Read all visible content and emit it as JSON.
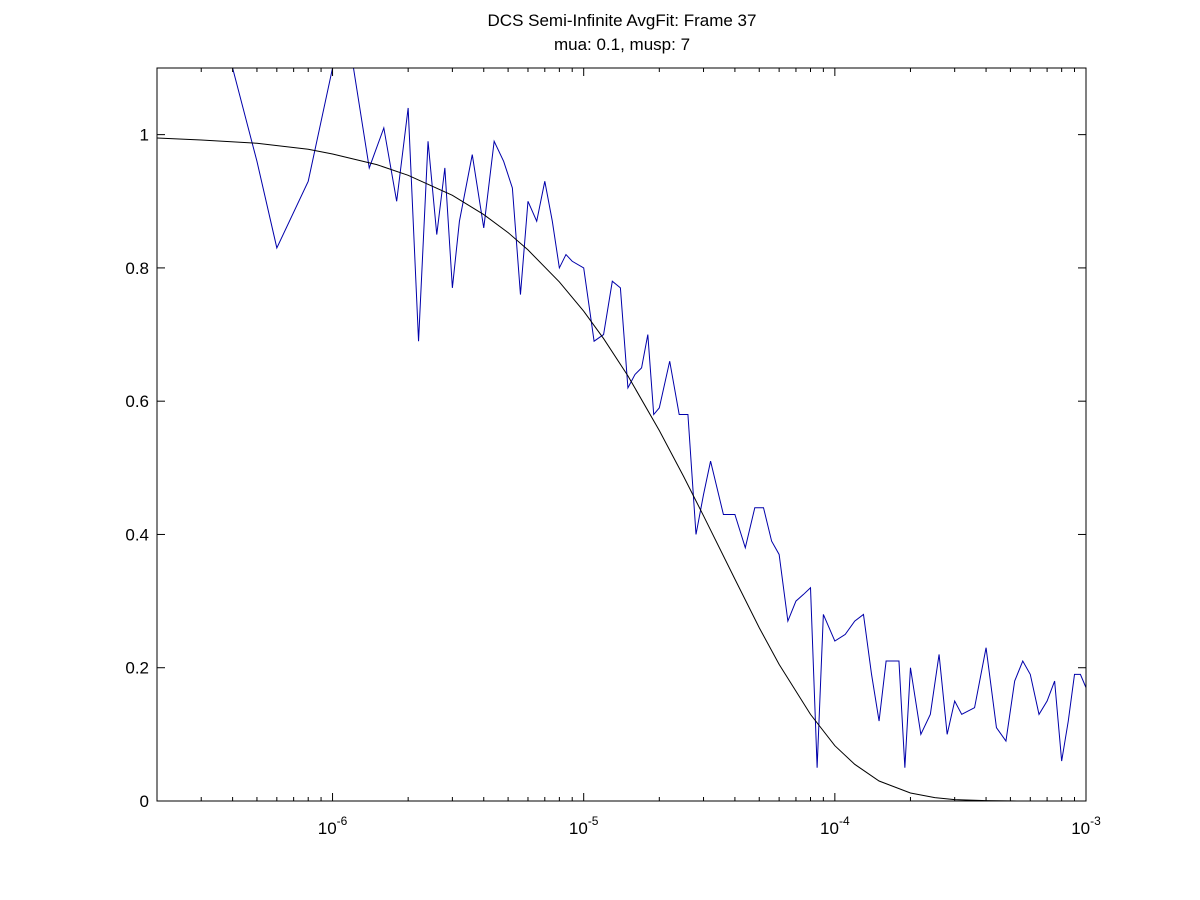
{
  "chart_data": {
    "type": "line",
    "title": "DCS Semi-Infinite AvgFit: Frame 37",
    "subtitle": "mua: 0.1, musp: 7",
    "xlabel": "",
    "ylabel": "",
    "xscale": "log",
    "xlim": [
      2e-07,
      0.001
    ],
    "ylim": [
      0,
      1.1
    ],
    "grid": false,
    "legend": "none",
    "x_ticks": [
      {
        "value": 1e-06,
        "base": "10",
        "exponent": "-6"
      },
      {
        "value": 1e-05,
        "base": "10",
        "exponent": "-5"
      },
      {
        "value": 0.0001,
        "base": "10",
        "exponent": "-4"
      },
      {
        "value": 0.001,
        "base": "10",
        "exponent": "-3"
      }
    ],
    "y_ticks": [
      {
        "value": 0,
        "label": "0"
      },
      {
        "value": 0.2,
        "label": "0.2"
      },
      {
        "value": 0.4,
        "label": "0.4"
      },
      {
        "value": 0.6,
        "label": "0.6"
      },
      {
        "value": 0.8,
        "label": "0.8"
      },
      {
        "value": 1.0,
        "label": "1"
      }
    ],
    "series": [
      {
        "color": "#0000aa",
        "x": [
          4e-07,
          5e-07,
          6e-07,
          8e-07,
          1e-06,
          1.2e-06,
          1.4e-06,
          1.6e-06,
          1.8e-06,
          2e-06,
          2.2e-06,
          2.4e-06,
          2.6e-06,
          2.8e-06,
          3e-06,
          3.2e-06,
          3.6e-06,
          4e-06,
          4.4e-06,
          4.8e-06,
          5.2e-06,
          5.6e-06,
          6e-06,
          6.5e-06,
          7e-06,
          7.5e-06,
          8e-06,
          8.5e-06,
          9e-06,
          1e-05,
          1.1e-05,
          1.2e-05,
          1.3e-05,
          1.4e-05,
          1.5e-05,
          1.6e-05,
          1.7e-05,
          1.8e-05,
          1.9e-05,
          2e-05,
          2.2e-05,
          2.4e-05,
          2.6e-05,
          2.8e-05,
          3e-05,
          3.2e-05,
          3.6e-05,
          4e-05,
          4.4e-05,
          4.8e-05,
          5.2e-05,
          5.6e-05,
          6e-05,
          6.5e-05,
          7e-05,
          7.5e-05,
          8e-05,
          8.5e-05,
          9e-05,
          0.0001,
          0.00011,
          0.00012,
          0.00013,
          0.00014,
          0.00015,
          0.00016,
          0.00017,
          0.00018,
          0.00019,
          0.0002,
          0.00022,
          0.00024,
          0.00026,
          0.00028,
          0.0003,
          0.00032,
          0.00036,
          0.0004,
          0.00044,
          0.00048,
          0.00052,
          0.00056,
          0.0006,
          0.00065,
          0.0007,
          0.00075,
          0.0008,
          0.00085,
          0.0009,
          0.00095,
          0.001
        ],
        "y": [
          1.1,
          0.96,
          0.83,
          0.93,
          1.1,
          1.11,
          0.95,
          1.01,
          0.9,
          1.04,
          0.69,
          0.99,
          0.85,
          0.95,
          0.77,
          0.87,
          0.97,
          0.86,
          0.99,
          0.96,
          0.92,
          0.76,
          0.9,
          0.87,
          0.93,
          0.87,
          0.8,
          0.82,
          0.81,
          0.8,
          0.69,
          0.7,
          0.78,
          0.77,
          0.62,
          0.64,
          0.65,
          0.7,
          0.58,
          0.59,
          0.66,
          0.58,
          0.58,
          0.4,
          0.46,
          0.51,
          0.43,
          0.43,
          0.38,
          0.44,
          0.44,
          0.39,
          0.37,
          0.27,
          0.3,
          0.31,
          0.32,
          0.05,
          0.28,
          0.24,
          0.25,
          0.27,
          0.28,
          0.19,
          0.12,
          0.21,
          0.21,
          0.21,
          0.05,
          0.2,
          0.1,
          0.13,
          0.22,
          0.1,
          0.15,
          0.13,
          0.14,
          0.23,
          0.11,
          0.09,
          0.18,
          0.21,
          0.19,
          0.13,
          0.15,
          0.18,
          0.06,
          0.12,
          0.19,
          0.19,
          0.17
        ]
      },
      {
        "color": "#000000",
        "x": [
          2e-07,
          3e-07,
          5e-07,
          8e-07,
          1e-06,
          1.5e-06,
          2e-06,
          3e-06,
          4e-06,
          5e-06,
          6e-06,
          8e-06,
          1e-05,
          1.2e-05,
          1.5e-05,
          2e-05,
          2.5e-05,
          3e-05,
          4e-05,
          5e-05,
          6e-05,
          8e-05,
          0.0001,
          0.00012,
          0.00015,
          0.0002,
          0.00025,
          0.0003,
          0.0004,
          0.0005,
          0.0006,
          0.0008,
          0.001
        ],
        "y": [
          0.995,
          0.992,
          0.987,
          0.978,
          0.971,
          0.955,
          0.939,
          0.909,
          0.88,
          0.853,
          0.827,
          0.779,
          0.735,
          0.694,
          0.638,
          0.556,
          0.487,
          0.428,
          0.333,
          0.26,
          0.205,
          0.13,
          0.083,
          0.055,
          0.03,
          0.012,
          0.005,
          0.002,
          0.0005,
          0.0001,
          0,
          0,
          0
        ]
      }
    ]
  }
}
